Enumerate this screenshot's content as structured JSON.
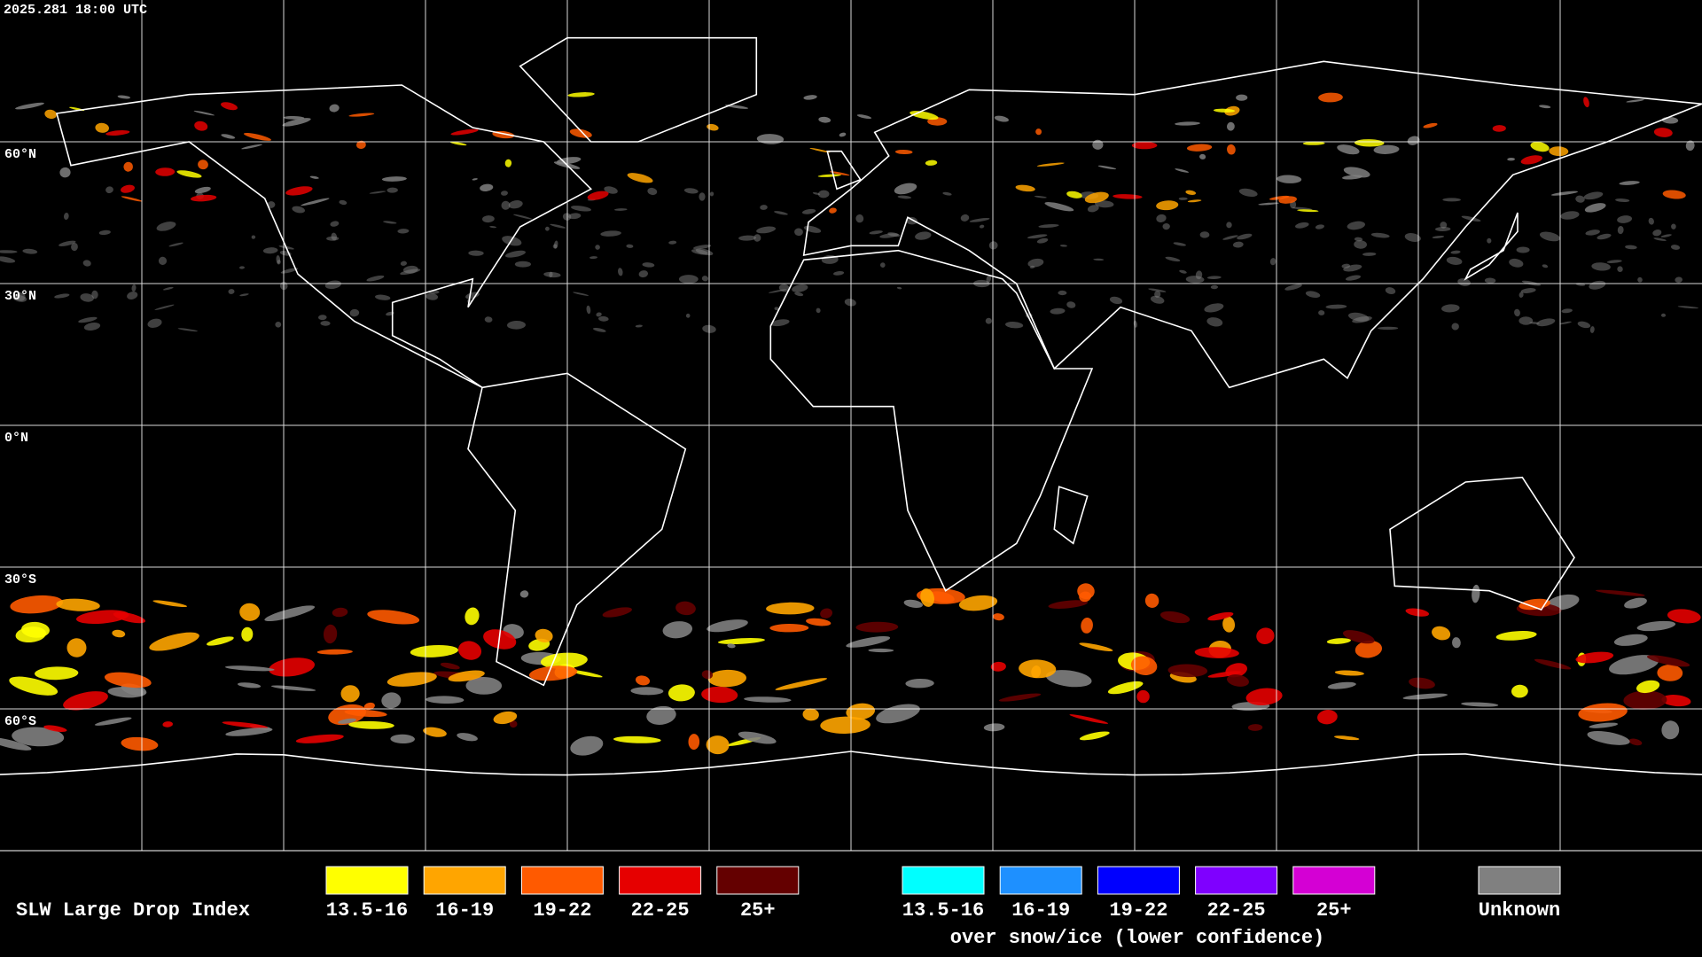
{
  "header": {
    "timestamp": "2025.281 18:00 UTC"
  },
  "grid": {
    "latitude_labels": [
      "60°N",
      "30°N",
      "0°N",
      "30°S",
      "60°S"
    ]
  },
  "legend": {
    "title": "SLW Large Drop Index",
    "items": [
      {
        "label": "13.5-16",
        "color": "#ffff00"
      },
      {
        "label": "16-19",
        "color": "#ffa500"
      },
      {
        "label": "19-22",
        "color": "#ff5a00"
      },
      {
        "label": "22-25",
        "color": "#e60000"
      },
      {
        "label": "25+",
        "color": "#640000"
      }
    ],
    "snow_ice_items": [
      {
        "label": "13.5-16",
        "color": "#00ffff"
      },
      {
        "label": "16-19",
        "color": "#1e90ff"
      },
      {
        "label": "19-22",
        "color": "#0000ff"
      },
      {
        "label": "22-25",
        "color": "#7f00ff"
      },
      {
        "label": "25+",
        "color": "#d400d4"
      }
    ],
    "snow_ice_note": "over snow/ice (lower confidence)",
    "unknown": {
      "label": "Unknown",
      "color": "#808080"
    }
  }
}
